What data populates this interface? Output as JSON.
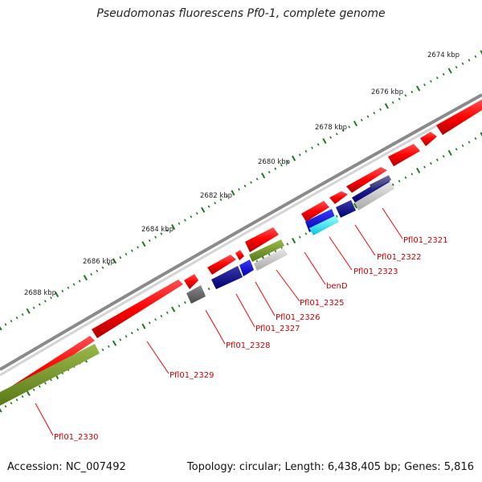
{
  "title": "Pseudomonas fluorescens Pf0-1, complete genome",
  "accession": "Accession: NC_007492",
  "topology": "Topology: circular; Length: 6,438,405 bp; Genes: 5,816",
  "colors": {
    "backbone": "#8a8a8a",
    "cds": "#ff0000",
    "tick": "#1e7a1e",
    "label": "#cc0000"
  },
  "ruler": [
    "2674 kbp",
    "2676 kbp",
    "2678 kbp",
    "2680 kbp",
    "2682 kbp",
    "2684 kbp",
    "2686 kbp",
    "2688 kbp"
  ],
  "genes": [
    "Pfl01_2321",
    "Pfl01_2322",
    "Pfl01_2323",
    "benD",
    "Pfl01_2325",
    "Pfl01_2326",
    "Pfl01_2327",
    "Pfl01_2328",
    "Pfl01_2329",
    "Pfl01_2330"
  ]
}
